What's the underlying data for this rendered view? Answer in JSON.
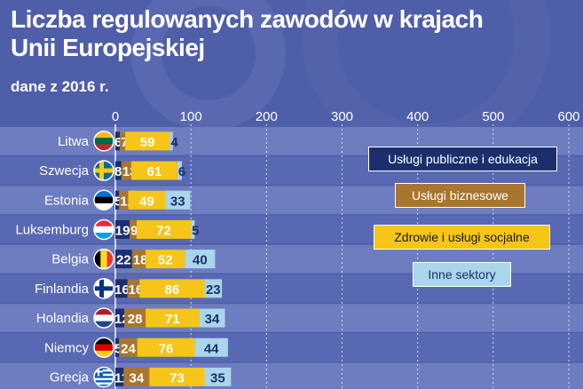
{
  "header": {
    "title_line1": "Liczba regulowanych zawodów w krajach",
    "title_line2": "Unii Europejskiej",
    "subtitle": "dane z 2016 r."
  },
  "legend": [
    {
      "label": "Usługi publiczne i edukacja",
      "color": "#1b2f6e",
      "text_color": "#ffffff"
    },
    {
      "label": "Usługi biznesowe",
      "color": "#a8762e",
      "text_color": "#ffffff"
    },
    {
      "label": "Zdrowie i usługi socjalne",
      "color": "#f5c518",
      "text_color": "#1a1a1a"
    },
    {
      "label": "Inne sektory",
      "color": "#a9d6ea",
      "text_color": "#1b2f6e"
    }
  ],
  "chart_data": {
    "type": "bar",
    "orientation": "horizontal",
    "stacked": true,
    "title": "Liczba regulowanych zawodów w krajach Unii Europejskiej",
    "subtitle": "dane z 2016 r.",
    "xlim": [
      0,
      600
    ],
    "x_ticks": [
      "0",
      "100",
      "200",
      "300",
      "400",
      "500",
      "600"
    ],
    "grid": true,
    "categories": [
      "Litwa",
      "Szwecja",
      "Estonia",
      "Luksemburg",
      "Belgia",
      "Finlandia",
      "Holandia",
      "Niemcy",
      "Grecja"
    ],
    "series": [
      {
        "name": "Usługi publiczne i edukacja",
        "values": [
          6,
          8,
          5,
          19,
          22,
          16,
          12,
          5,
          11
        ],
        "color": "#1b2f6e"
      },
      {
        "name": "Usługi biznesowe",
        "values": [
          7,
          13,
          12,
          9,
          18,
          16,
          28,
          24,
          34
        ],
        "color": "#a8762e"
      },
      {
        "name": "Zdrowie i usługi socjalne",
        "values": [
          59,
          61,
          49,
          72,
          52,
          86,
          71,
          76,
          73
        ],
        "color": "#f5c518"
      },
      {
        "name": "Inne sektory",
        "values": [
          4,
          6,
          33,
          5,
          40,
          23,
          34,
          44,
          35
        ],
        "color": "#a9d6ea"
      }
    ],
    "flags": [
      "lithuania-flag-icon",
      "sweden-flag-icon",
      "estonia-flag-icon",
      "luxembourg-flag-icon",
      "belgium-flag-icon",
      "finland-flag-icon",
      "netherlands-flag-icon",
      "germany-flag-icon",
      "greece-flag-icon"
    ],
    "row_band_colors": [
      "#6e7cc0",
      "#5968b3"
    ]
  }
}
